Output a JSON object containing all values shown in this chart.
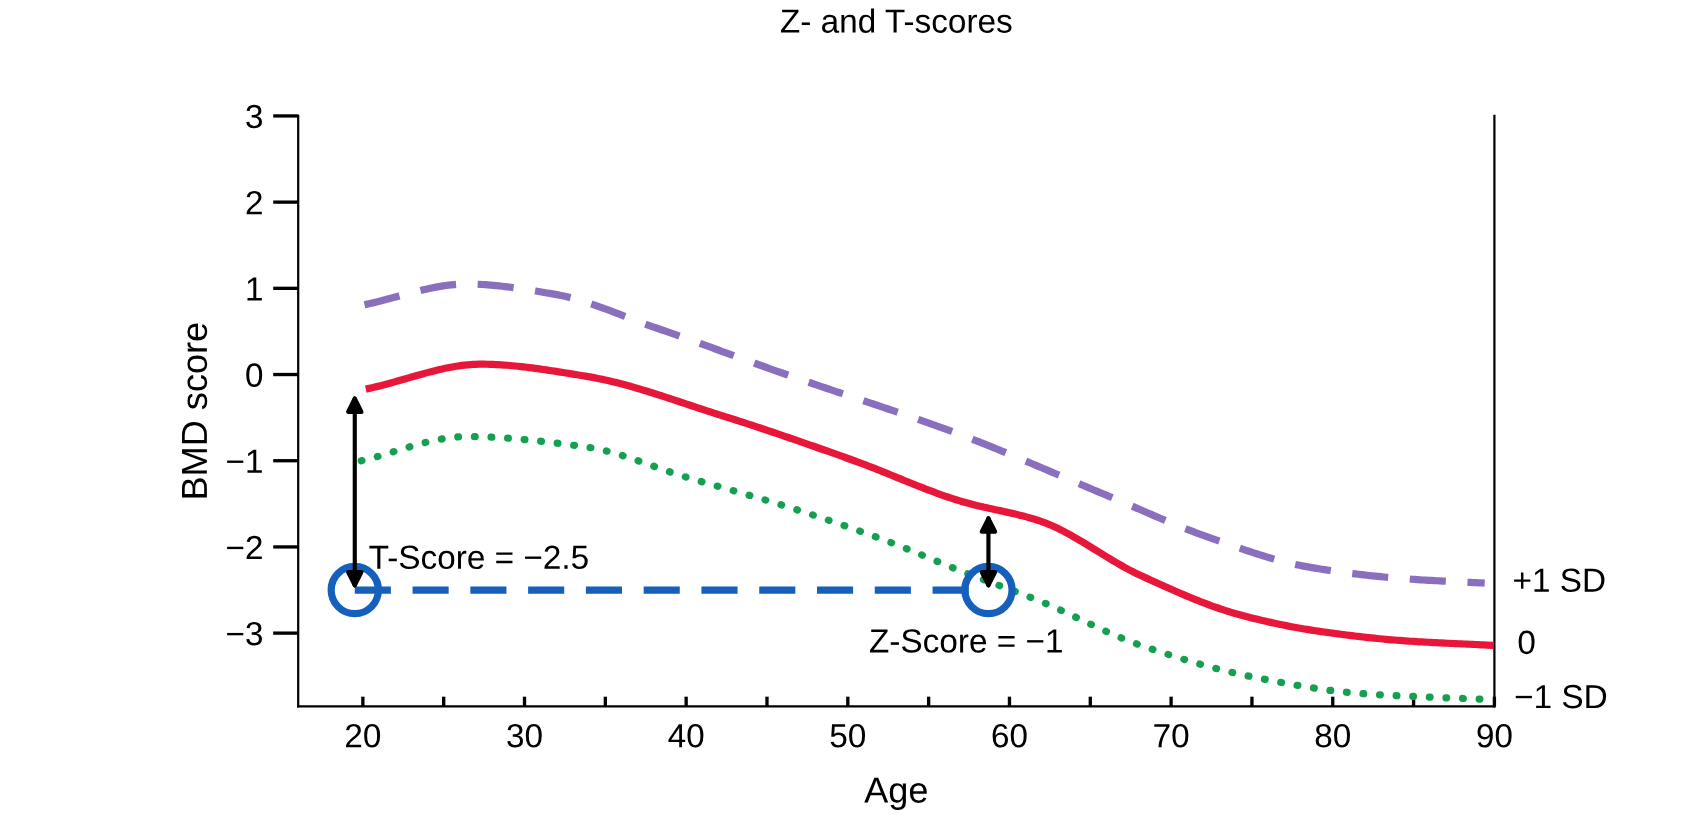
{
  "chart_data": {
    "type": "line",
    "title": "Z- and T-scores",
    "xlabel": "Age",
    "ylabel": "BMD score",
    "xlim": [
      16,
      90
    ],
    "ylim": [
      -3.85,
      3
    ],
    "xticks": [
      20,
      {
        "value": 25,
        "label": null
      },
      30,
      {
        "value": 35,
        "label": null
      },
      40,
      {
        "value": 45,
        "label": null
      },
      50,
      {
        "value": 55,
        "label": null
      },
      60,
      {
        "value": 65,
        "label": null
      },
      70,
      {
        "value": 75,
        "label": null
      },
      80,
      {
        "value": 85,
        "label": null
      },
      90
    ],
    "yticks": [
      {
        "value": 3,
        "label": "3"
      },
      {
        "value": 2,
        "label": "2"
      },
      {
        "value": 1,
        "label": "1"
      },
      {
        "value": 0,
        "label": "0"
      },
      {
        "value": -1,
        "label": "−1"
      },
      {
        "value": -2,
        "label": "−2"
      },
      {
        "value": -3,
        "label": "−3"
      }
    ],
    "grid": false,
    "legend": false,
    "series": [
      {
        "color": "#8a6fbf",
        "line_style": "dashed",
        "marker": "none",
        "x": [
          20.1,
          26.4,
          31.9,
          38,
          46.2,
          57,
          66,
          72.2,
          78.4,
          84.5,
          89.4
        ],
        "values": [
          0.81,
          1.05,
          0.93,
          0.55,
          0.0,
          -0.7,
          -1.4,
          -1.88,
          -2.23,
          -2.37,
          -2.42
        ]
      },
      {
        "color": "#e8173a",
        "line_style": "solid",
        "marker": "none",
        "x": [
          20.4,
          27.3,
          33.8,
          42.1,
          50.4,
          57,
          61.9,
          68.1,
          74.3,
          79.2,
          84.5,
          89.7
        ],
        "values": [
          -0.16,
          0.12,
          -0.02,
          -0.47,
          -1.0,
          -1.47,
          -1.7,
          -2.33,
          -2.79,
          -2.98,
          -3.09,
          -3.14
        ]
      },
      {
        "color": "#14a050",
        "line_style": "dotted",
        "marker": "none",
        "x": [
          19.9,
          26.4,
          33.8,
          40,
          46.2,
          52.4,
          57,
          61.9,
          68.1,
          75.1,
          81.7,
          89.5
        ],
        "values": [
          -1.0,
          -0.72,
          -0.84,
          -1.19,
          -1.53,
          -1.93,
          -2.28,
          -2.63,
          -3.14,
          -3.51,
          -3.7,
          -3.77
        ]
      },
      {
        "color": "#1560bd",
        "line_style": "dashed",
        "marker": "circle",
        "x": [
          19.5,
          58.7
        ],
        "values": [
          -2.5,
          -2.5
        ]
      }
    ],
    "annotations": [
      {
        "text": "T-Score = −2.5",
        "x": 19.5,
        "y": -2.5
      },
      {
        "text": "Z-Score = −1",
        "x": 58.7,
        "y": -2.5
      },
      {
        "text": "+1 SD",
        "x": 89.4,
        "y": -2.42
      },
      {
        "text": "0",
        "x": 89.7,
        "y": -3.14
      },
      {
        "text": "−1 SD",
        "x": 89.5,
        "y": -3.77
      }
    ]
  }
}
